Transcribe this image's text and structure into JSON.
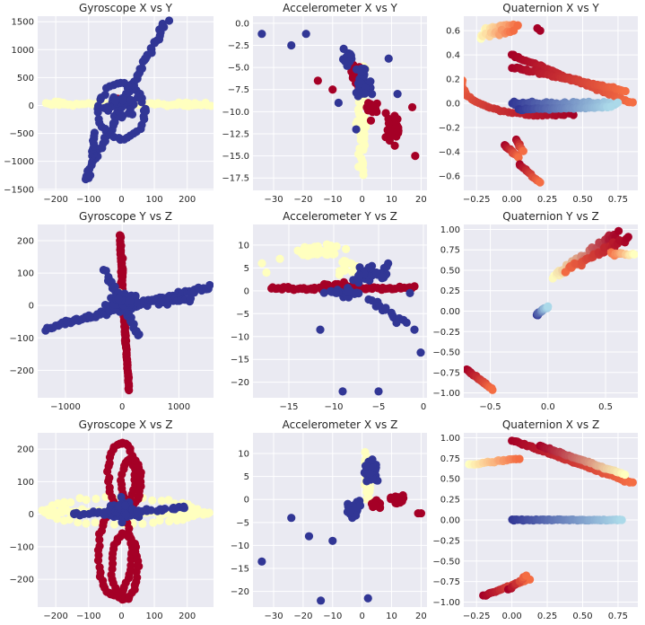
{
  "chart_data": [
    {
      "type": "scatter",
      "title": "Gyroscope X vs Y",
      "xticks": [
        -200,
        -100,
        0,
        100,
        200
      ],
      "yticks": [
        -1500,
        -1000,
        -500,
        0,
        500,
        1000,
        1500
      ],
      "xlim": [
        -255,
        280
      ],
      "ylim": [
        -1520,
        1600
      ],
      "grid": true,
      "legend": "none"
    },
    {
      "type": "scatter",
      "title": "Accelerometer X vs Y",
      "xticks": [
        -30,
        -20,
        -10,
        0,
        10,
        20
      ],
      "yticks": [
        -17.5,
        -15,
        -12.5,
        -10,
        -7.5,
        -5,
        -2.5,
        0
      ],
      "xlim": [
        -37,
        22
      ],
      "ylim": [
        -18.9,
        0.8
      ],
      "grid": true,
      "legend": "none"
    },
    {
      "type": "scatter",
      "title": "Quaternion X vs Y",
      "xticks": [
        -0.25,
        0,
        0.25,
        0.5,
        0.75
      ],
      "yticks": [
        -0.6,
        -0.4,
        -0.2,
        0,
        0.2,
        0.4,
        0.6
      ],
      "xlim": [
        -0.34,
        0.89
      ],
      "ylim": [
        -0.72,
        0.72
      ],
      "grid": true,
      "legend": "none"
    },
    {
      "type": "scatter",
      "title": "Gyroscope Y vs Z",
      "xticks": [
        -1000,
        0,
        1000
      ],
      "yticks": [
        -200,
        -100,
        0,
        100,
        200
      ],
      "xlim": [
        -1490,
        1610
      ],
      "ylim": [
        -285,
        250
      ],
      "grid": true,
      "legend": "none"
    },
    {
      "type": "scatter",
      "title": "Accelerometer Y vs Z",
      "xticks": [
        -15,
        -10,
        -5,
        0
      ],
      "yticks": [
        -20,
        -15,
        -10,
        -5,
        0,
        5,
        10
      ],
      "xlim": [
        -19,
        0.4
      ],
      "ylim": [
        -23.4,
        14.5
      ],
      "grid": true,
      "legend": "none"
    },
    {
      "type": "scatter",
      "title": "Quaternion Y vs Z",
      "xticks": [
        -0.5,
        0,
        0.5
      ],
      "yticks": [
        -1,
        -0.75,
        -0.5,
        -0.25,
        0,
        0.25,
        0.5,
        0.75,
        1
      ],
      "xlim": [
        -0.73,
        0.78
      ],
      "ylim": [
        -1.06,
        1.06
      ],
      "grid": true,
      "legend": "none"
    },
    {
      "type": "scatter",
      "title": "Gyroscope X vs Z",
      "xticks": [
        -200,
        -100,
        0,
        100,
        200
      ],
      "yticks": [
        -200,
        -100,
        0,
        100,
        200
      ],
      "xlim": [
        -255,
        280
      ],
      "ylim": [
        -285,
        250
      ],
      "grid": true,
      "legend": "none"
    },
    {
      "type": "scatter",
      "title": "Accelerometer X vs Z",
      "xticks": [
        -30,
        -20,
        -10,
        0,
        10,
        20
      ],
      "yticks": [
        -20,
        -15,
        -10,
        -5,
        0,
        5,
        10
      ],
      "xlim": [
        -37,
        22
      ],
      "ylim": [
        -23.4,
        14.5
      ],
      "grid": true,
      "legend": "none"
    },
    {
      "type": "scatter",
      "title": "Quaternion X vs Z",
      "xticks": [
        -0.25,
        0,
        0.25,
        0.5,
        0.75
      ],
      "yticks": [
        -1,
        -0.75,
        -0.5,
        -0.25,
        0,
        0.25,
        0.5,
        0.75,
        1
      ],
      "xlim": [
        -0.34,
        0.89
      ],
      "ylim": [
        -1.06,
        1.06
      ],
      "grid": true,
      "legend": "none"
    }
  ],
  "colors": {
    "bg": "#eaeaf2",
    "grid": "#ffffff",
    "red": "#a50026",
    "yellow": "#ffffbf",
    "blue": "#313695",
    "orange": "#f46d43",
    "lightblue": "#abd9e9"
  }
}
